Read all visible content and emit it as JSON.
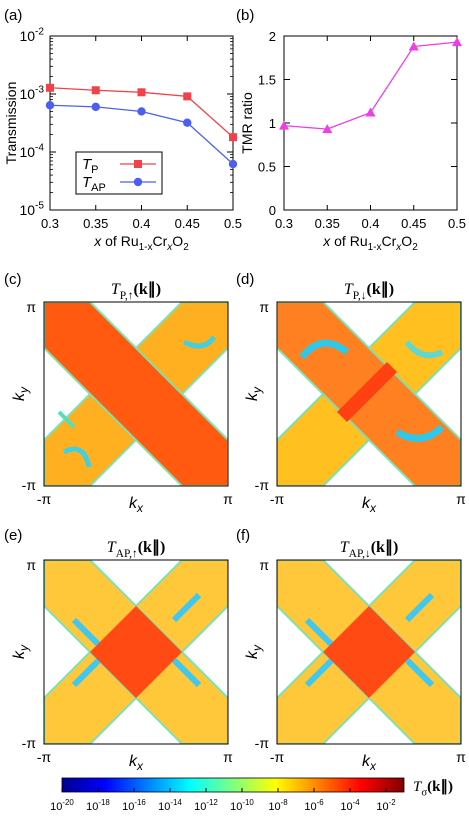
{
  "chart_data": [
    {
      "panel": "(a)",
      "type": "line",
      "ylabel": "Transmission",
      "xlabel_parts": [
        "x",
        " of Ru",
        "1-x",
        "Cr",
        "x",
        "O",
        "2"
      ],
      "x": [
        0.3,
        0.35,
        0.4,
        0.45,
        0.5
      ],
      "x_ticks": [
        "0.3",
        "0.35",
        "0.4",
        "0.45",
        "0.5"
      ],
      "y_scale": "log",
      "ylim": [
        1e-05,
        0.01
      ],
      "y_ticks": [
        {
          "base": "10",
          "exp": "-5",
          "value": 1e-05
        },
        {
          "base": "10",
          "exp": "-4",
          "value": 0.0001
        },
        {
          "base": "10",
          "exp": "-3",
          "value": 0.001
        },
        {
          "base": "10",
          "exp": "-2",
          "value": 0.01
        }
      ],
      "legend_position": "lower-left",
      "series": [
        {
          "name": "T",
          "sub": "P",
          "color": "#f0424a",
          "marker": "square",
          "values": [
            0.00128,
            0.00116,
            0.00107,
            0.00091,
            0.00018
          ]
        },
        {
          "name": "T",
          "sub": "AP",
          "color": "#4d5ff0",
          "marker": "circle",
          "values": [
            0.00064,
            0.0006,
            0.0005,
            0.00032,
            6.2e-05
          ]
        }
      ]
    },
    {
      "panel": "(b)",
      "type": "line",
      "ylabel": "TMR ratio",
      "xlabel_parts": [
        "x",
        " of Ru",
        "1-x",
        "Cr",
        "x",
        "O",
        "2"
      ],
      "x": [
        0.3,
        0.35,
        0.4,
        0.45,
        0.5
      ],
      "x_ticks": [
        "0.3",
        "0.35",
        "0.4",
        "0.45",
        "0.5"
      ],
      "ylim": [
        0,
        2
      ],
      "y_ticks": [
        "0",
        "0.5",
        "1",
        "1.5",
        "2"
      ],
      "series": [
        {
          "color": "#ee3ee8",
          "marker": "triangle",
          "values": [
            0.97,
            0.93,
            1.12,
            1.88,
            1.93
          ]
        }
      ]
    },
    {
      "panel": "(c)",
      "type": "heatmap",
      "title": {
        "base": "T",
        "sub": "P,↑",
        "arg": "(k∥)"
      },
      "xlabel": "kx",
      "ylabel": "ky",
      "x_ticks": [
        "-π",
        "π"
      ],
      "y_ticks": [
        "-π",
        "π"
      ],
      "pattern": "P-up"
    },
    {
      "panel": "(d)",
      "type": "heatmap",
      "title": {
        "base": "T",
        "sub": "P,↓",
        "arg": "(k∥)"
      },
      "xlabel": "kx",
      "ylabel": "ky",
      "x_ticks": [
        "-π",
        "π"
      ],
      "y_ticks": [
        "-π",
        "π"
      ],
      "pattern": "P-down"
    },
    {
      "panel": "(e)",
      "type": "heatmap",
      "title": {
        "base": "T",
        "sub": "AP,↑",
        "arg": "(k∥)"
      },
      "xlabel": "kx",
      "ylabel": "ky",
      "x_ticks": [
        "-π",
        "π"
      ],
      "y_ticks": [
        "-π",
        "π"
      ],
      "pattern": "AP"
    },
    {
      "panel": "(f)",
      "type": "heatmap",
      "title": {
        "base": "T",
        "sub": "AP,↓",
        "arg": "(k∥)"
      },
      "xlabel": "kx",
      "ylabel": "ky",
      "x_ticks": [
        "-π",
        "π"
      ],
      "y_ticks": [
        "-π",
        "π"
      ],
      "pattern": "AP"
    }
  ],
  "colorbar": {
    "label": {
      "base": "T",
      "sub": "σ",
      "arg": "(k∥)"
    },
    "scale": "log",
    "range": [
      1e-20,
      0.1
    ],
    "ticks": [
      {
        "base": "10",
        "exp": "-20"
      },
      {
        "base": "10",
        "exp": "-18"
      },
      {
        "base": "10",
        "exp": "-16"
      },
      {
        "base": "10",
        "exp": "-14"
      },
      {
        "base": "10",
        "exp": "-12"
      },
      {
        "base": "10",
        "exp": "-10"
      },
      {
        "base": "10",
        "exp": "-8"
      },
      {
        "base": "10",
        "exp": "-6"
      },
      {
        "base": "10",
        "exp": "-4"
      },
      {
        "base": "10",
        "exp": "-2"
      }
    ],
    "colors": [
      "#00008f",
      "#0000ff",
      "#0080ff",
      "#00ffff",
      "#80ff80",
      "#ffff00",
      "#ff8000",
      "#ff0000",
      "#800000"
    ]
  }
}
